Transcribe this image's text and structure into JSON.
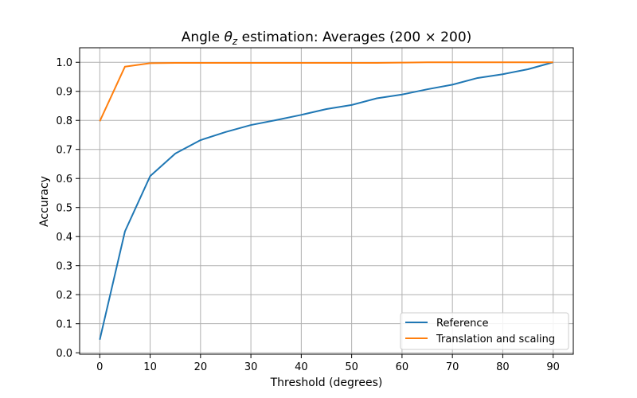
{
  "chart_data": {
    "type": "line",
    "title_main": "Angle ",
    "title_symbol": "θ",
    "title_subscript": "z",
    "title_rest": " estimation: Averages (200 × 200)",
    "xlabel": "Threshold (degrees)",
    "ylabel": "Accuracy",
    "xlim": [
      -4,
      94
    ],
    "ylim": [
      -0.005,
      1.05
    ],
    "xticks": [
      0,
      10,
      20,
      30,
      40,
      50,
      60,
      70,
      80,
      90
    ],
    "yticks": [
      0.0,
      0.1,
      0.2,
      0.3,
      0.4,
      0.5,
      0.6,
      0.7,
      0.8,
      0.9,
      1.0
    ],
    "ytick_labels": [
      "0.0",
      "0.1",
      "0.2",
      "0.3",
      "0.4",
      "0.5",
      "0.6",
      "0.7",
      "0.8",
      "0.9",
      "1.0"
    ],
    "grid": true,
    "legend_position": "lower-right",
    "x": [
      0,
      5,
      10,
      15,
      20,
      25,
      30,
      35,
      40,
      45,
      50,
      55,
      60,
      65,
      70,
      75,
      80,
      85,
      90
    ],
    "series": [
      {
        "name": "Reference",
        "color": "#1f77b4",
        "values": [
          0.045,
          0.418,
          0.608,
          0.686,
          0.732,
          0.76,
          0.784,
          0.801,
          0.819,
          0.839,
          0.853,
          0.876,
          0.889,
          0.907,
          0.923,
          0.946,
          0.959,
          0.976,
          1.0
        ]
      },
      {
        "name": "Translation and scaling",
        "color": "#ff7f0e",
        "values": [
          0.797,
          0.985,
          0.997,
          0.998,
          0.998,
          0.998,
          0.998,
          0.998,
          0.998,
          0.998,
          0.998,
          0.998,
          0.999,
          1.0,
          1.0,
          1.0,
          1.0,
          1.0,
          1.0
        ]
      }
    ]
  }
}
